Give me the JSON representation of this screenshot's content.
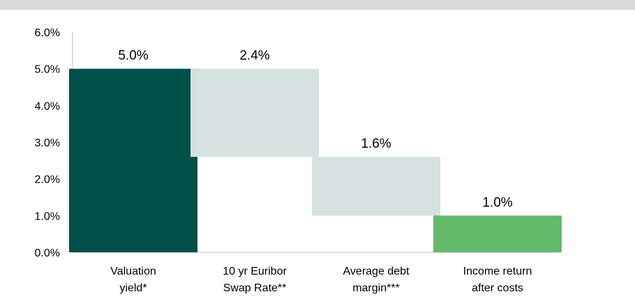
{
  "chart_data": {
    "type": "bar",
    "subtype": "waterfall",
    "categories": [
      [
        "Valuation",
        "yield*"
      ],
      [
        "10 yr Euribor",
        "Swap Rate**"
      ],
      [
        "Average debt",
        "margin***"
      ],
      [
        "Income return",
        "after costs"
      ]
    ],
    "bars": [
      {
        "start": 0,
        "end": 5.0,
        "label": "5.0%",
        "kind": "total"
      },
      {
        "start": 2.6,
        "end": 5.0,
        "label": "2.4%",
        "kind": "decrease"
      },
      {
        "start": 1.0,
        "end": 2.6,
        "label": "1.6%",
        "kind": "decrease"
      },
      {
        "start": 0,
        "end": 1.0,
        "label": "1.0%",
        "kind": "result"
      }
    ],
    "ylim": [
      0,
      6
    ],
    "yticks": [
      0,
      1,
      2,
      3,
      4,
      5,
      6
    ],
    "ytick_labels": [
      "0.0%",
      "1.0%",
      "2.0%",
      "3.0%",
      "4.0%",
      "5.0%",
      "6.0%"
    ],
    "grid": false,
    "colors": {
      "total": "#005049",
      "decrease": "#d5e2e0",
      "result": "#65b96a",
      "axis": "#bfbfbf",
      "top_band": "#d9d9d9"
    }
  }
}
